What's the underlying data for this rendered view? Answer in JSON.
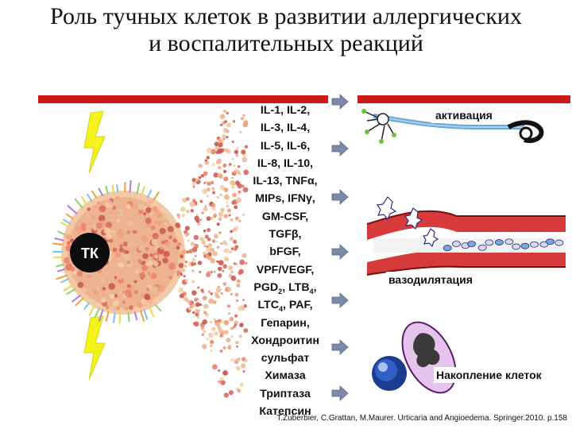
{
  "title": {
    "line1": "Роль тучных клеток в развитии аллергических",
    "line2": "и воспалительных реакций"
  },
  "cell_label": "ТК",
  "mediators": [
    {
      "text": "IL-1, IL-2,"
    },
    {
      "text": "IL-3, IL-4,"
    },
    {
      "text": "IL-5, IL-6,"
    },
    {
      "text": "IL-8, IL-10,"
    },
    {
      "text": "IL-13, TNFα,"
    },
    {
      "text": "MIPs, IFNγ,"
    },
    {
      "text": "GM-CSF,"
    },
    {
      "text": "TGFβ,"
    },
    {
      "text": "bFGF,"
    },
    {
      "text": "VPF/VEGF,"
    },
    {
      "base1": "PGD",
      "sub1": "2",
      "mid": ", LTB",
      "sub2": "4",
      "tail": ","
    },
    {
      "base1": "LTC",
      "sub1": "4",
      "mid": ", PAF,",
      "sub2": "",
      "tail": ""
    },
    {
      "text": "Гепарин,"
    },
    {
      "text": "Хондроитин"
    },
    {
      "text": "сульфат"
    },
    {
      "text": "Химаза"
    },
    {
      "text": "Триптаза"
    },
    {
      "text": "Катепсин"
    }
  ],
  "effects": {
    "activation": "активация",
    "vasodilation": "вазодилятация",
    "accumulation": "Накопление клеток"
  },
  "citation": "T.Zuberbier, C.Grattan, M.Maurer. Urticaria and Angioedema. Springer.2010. p.158",
  "colors": {
    "band_red": "#cc1a1a",
    "arrow_gray": "#7b8aa8",
    "lightning_yellow": "#f3f21a",
    "cell_core": "#0d0d0d"
  }
}
